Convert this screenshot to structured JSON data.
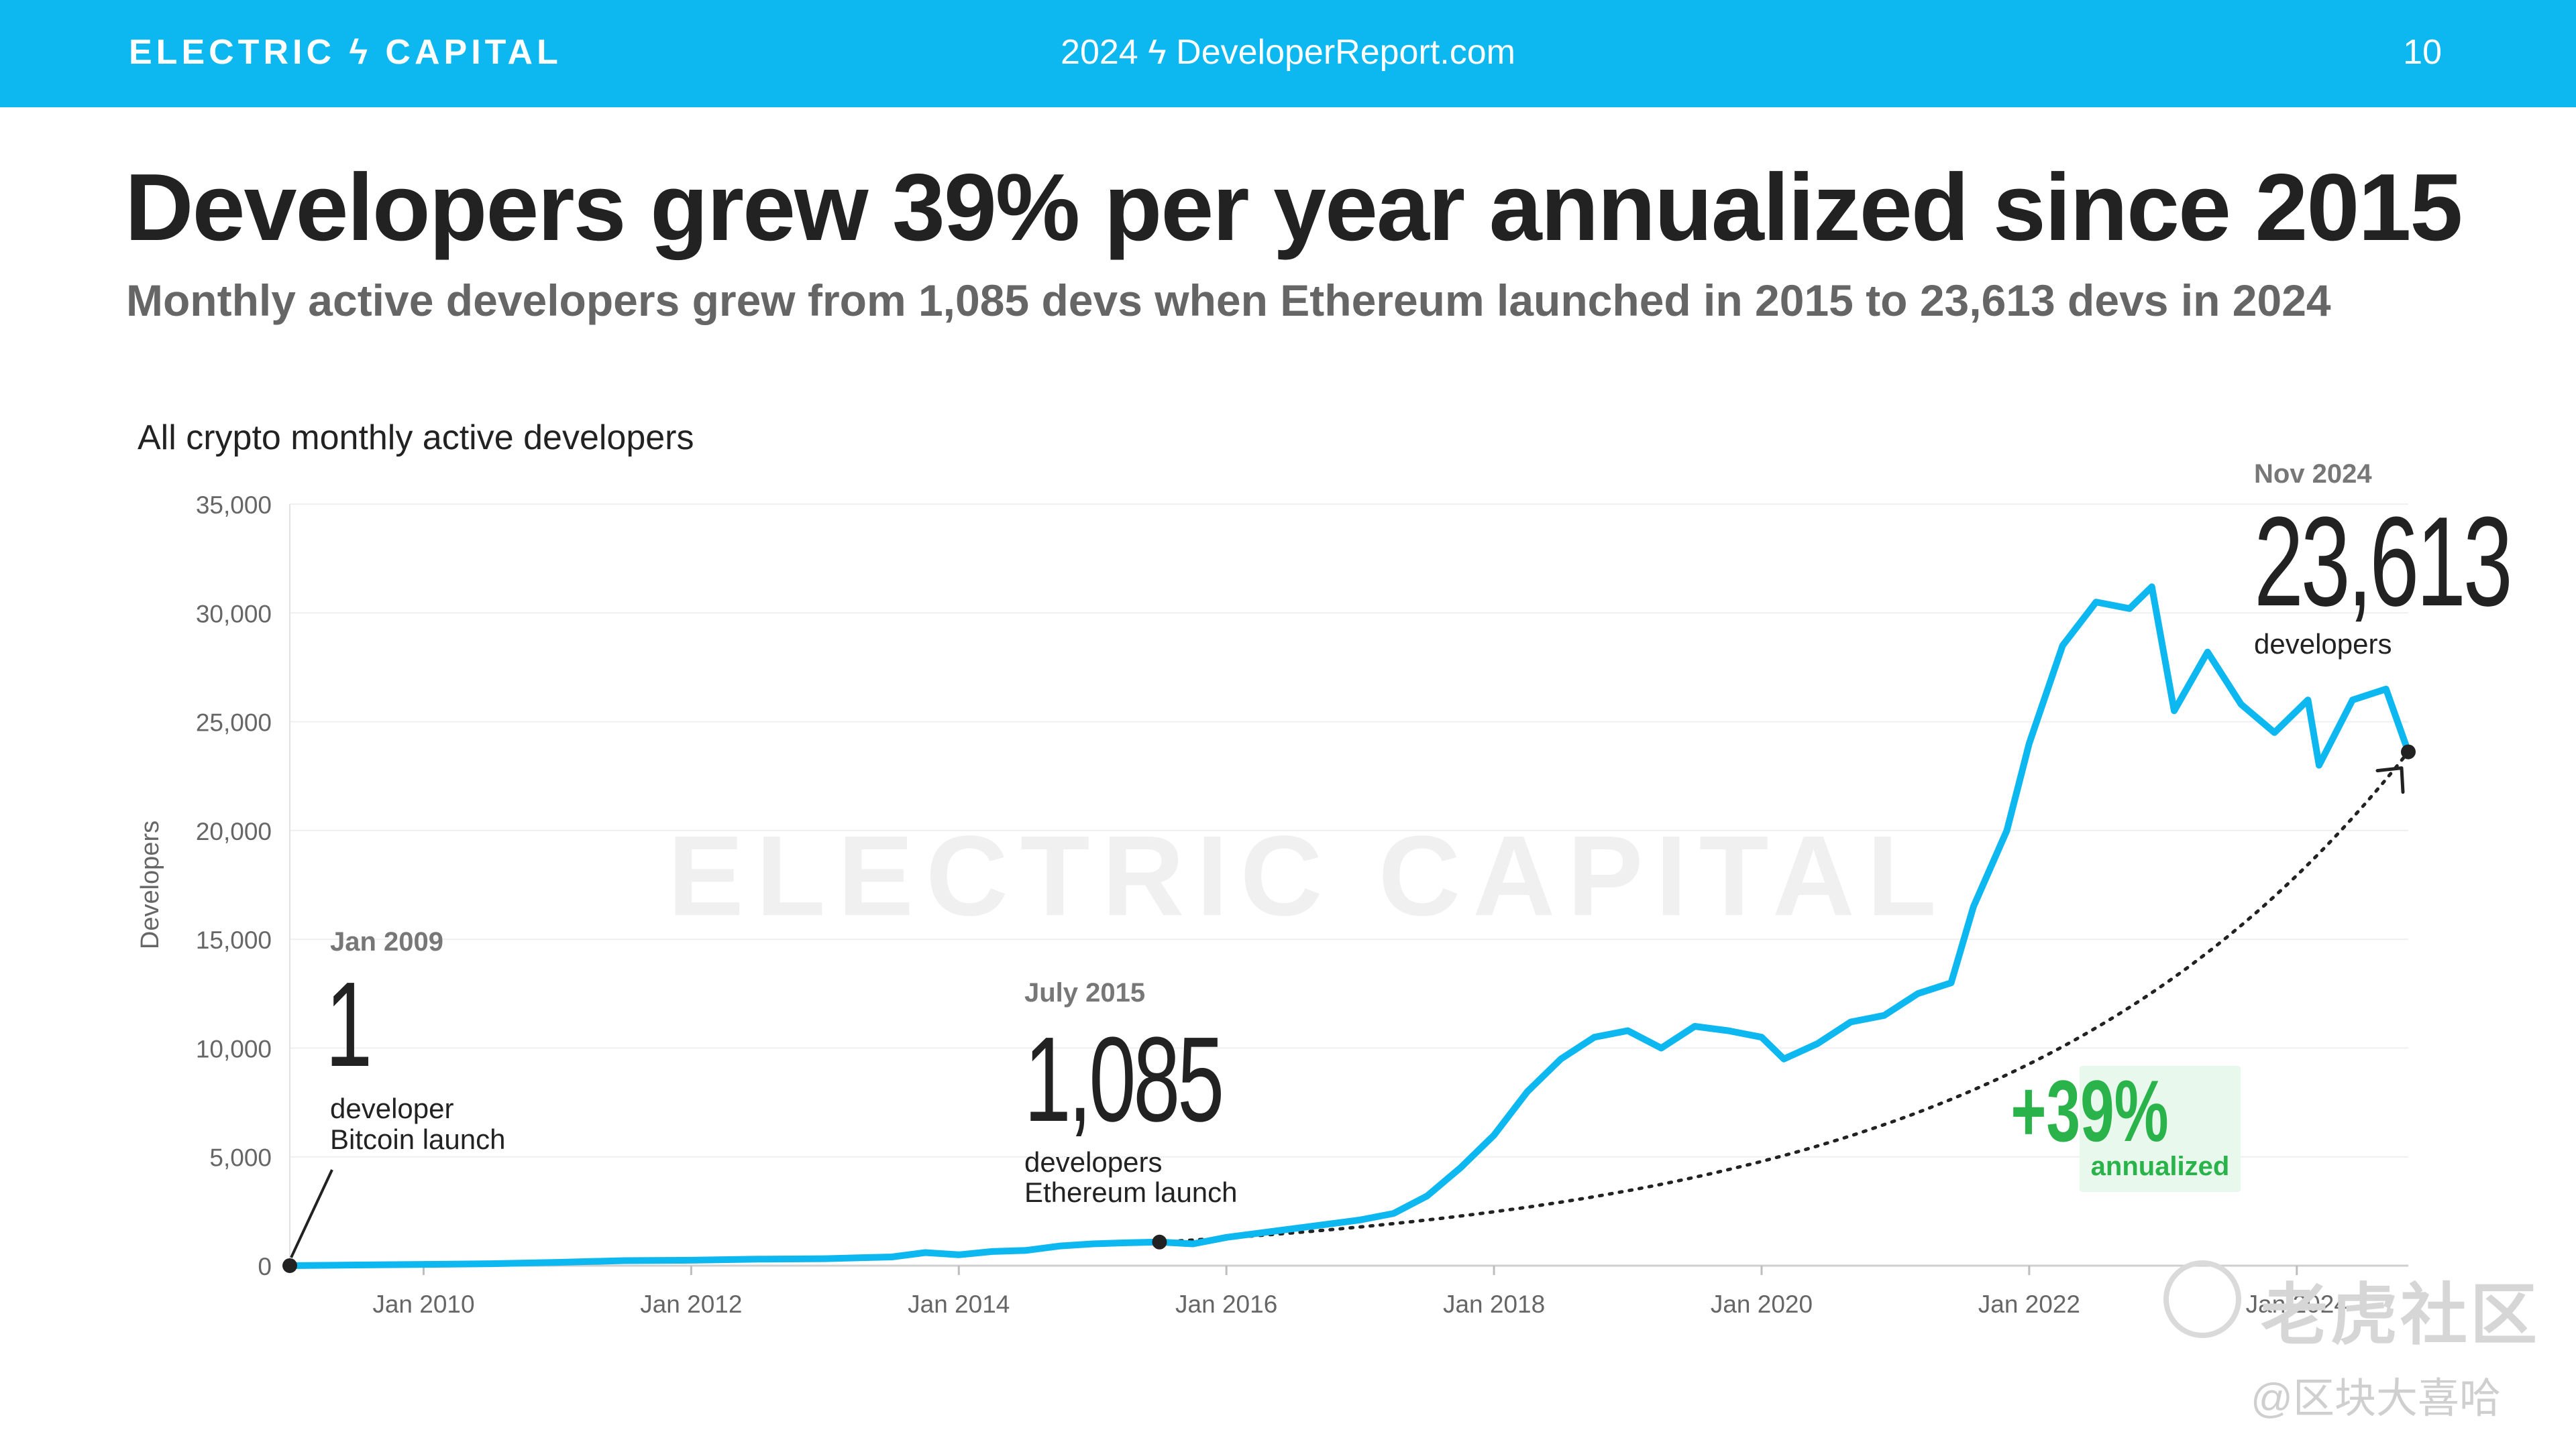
{
  "header": {
    "brand": "ELECTRIC ϟ CAPITAL",
    "site": "2024 ϟ DeveloperReport.com",
    "page_number": "10"
  },
  "title": "Developers grew 39% per year annualized since 2015",
  "subtitle": "Monthly active developers grew from 1,085 devs when Ethereum launched in 2015 to 23,613 devs in 2024",
  "colors": {
    "header_bg": "#0db7ef",
    "line": "#0db7ef",
    "growth": "#29b34a",
    "growth_bg": "#e9f8ec"
  },
  "watermarks": {
    "center": "ELECTRIC CAPITAL",
    "cn": "老虎社区",
    "cn_sub": "@区块大喜哈"
  },
  "chart_data": {
    "type": "line",
    "title": "All crypto monthly active developers",
    "ylabel": "Developers",
    "xlabel": "",
    "ylim": [
      0,
      35000
    ],
    "xlim": [
      "2009-01",
      "2024-11"
    ],
    "y_ticks": [
      "0",
      "5,000",
      "10,000",
      "15,000",
      "20,000",
      "25,000",
      "30,000",
      "35,000"
    ],
    "x_ticks": [
      "Jan 2010",
      "Jan 2012",
      "Jan 2014",
      "Jan 2016",
      "Jan 2018",
      "Jan 2020",
      "Jan 2022",
      "Jan 2024"
    ],
    "grid": true,
    "series": [
      {
        "values": [
          [
            "2009-01",
            1
          ],
          [
            "2009-07",
            30
          ],
          [
            "2010-01",
            60
          ],
          [
            "2010-07",
            90
          ],
          [
            "2011-01",
            150
          ],
          [
            "2011-07",
            230
          ],
          [
            "2012-01",
            250
          ],
          [
            "2012-07",
            300
          ],
          [
            "2013-01",
            320
          ],
          [
            "2013-07",
            400
          ],
          [
            "2013-10",
            600
          ],
          [
            "2014-01",
            500
          ],
          [
            "2014-04",
            650
          ],
          [
            "2014-07",
            700
          ],
          [
            "2014-10",
            900
          ],
          [
            "2015-01",
            1000
          ],
          [
            "2015-04",
            1050
          ],
          [
            "2015-07",
            1085
          ],
          [
            "2015-10",
            1000
          ],
          [
            "2016-01",
            1300
          ],
          [
            "2016-04",
            1500
          ],
          [
            "2016-07",
            1700
          ],
          [
            "2016-10",
            1900
          ],
          [
            "2017-01",
            2100
          ],
          [
            "2017-04",
            2400
          ],
          [
            "2017-07",
            3200
          ],
          [
            "2017-10",
            4500
          ],
          [
            "2018-01",
            6000
          ],
          [
            "2018-04",
            8000
          ],
          [
            "2018-07",
            9500
          ],
          [
            "2018-10",
            10500
          ],
          [
            "2019-01",
            10800
          ],
          [
            "2019-04",
            10000
          ],
          [
            "2019-07",
            11000
          ],
          [
            "2019-10",
            10800
          ],
          [
            "2020-01",
            10500
          ],
          [
            "2020-03",
            9500
          ],
          [
            "2020-06",
            10200
          ],
          [
            "2020-09",
            11200
          ],
          [
            "2020-12",
            11500
          ],
          [
            "2021-03",
            12500
          ],
          [
            "2021-06",
            13000
          ],
          [
            "2021-08",
            16500
          ],
          [
            "2021-11",
            20000
          ],
          [
            "2022-01",
            24000
          ],
          [
            "2022-02",
            25500
          ],
          [
            "2022-04",
            28500
          ],
          [
            "2022-07",
            30500
          ],
          [
            "2022-10",
            30200
          ],
          [
            "2022-12",
            31200
          ],
          [
            "2023-02",
            25500
          ],
          [
            "2023-05",
            28200
          ],
          [
            "2023-08",
            25800
          ],
          [
            "2023-11",
            24500
          ],
          [
            "2024-02",
            26000
          ],
          [
            "2024-03",
            23000
          ],
          [
            "2024-06",
            26000
          ],
          [
            "2024-09",
            26500
          ],
          [
            "2024-11",
            23613
          ]
        ]
      }
    ],
    "projection": {
      "label": "+39%",
      "sublabel": "annualized",
      "from": [
        "2015-07",
        1085
      ],
      "to": [
        "2024-11",
        23613
      ]
    },
    "annotations": [
      {
        "id": "bitcoin",
        "date": "Jan 2009",
        "value": "1",
        "line1": "developer",
        "line2": "Bitcoin launch",
        "point": [
          "2009-01",
          1
        ]
      },
      {
        "id": "ethereum",
        "date": "July 2015",
        "value": "1,085",
        "line1": "developers",
        "line2": "Ethereum launch",
        "point": [
          "2015-07",
          1085
        ]
      },
      {
        "id": "latest",
        "date": "Nov 2024",
        "value": "23,613",
        "line1": "developers",
        "line2": "",
        "point": [
          "2024-11",
          23613
        ]
      }
    ]
  }
}
